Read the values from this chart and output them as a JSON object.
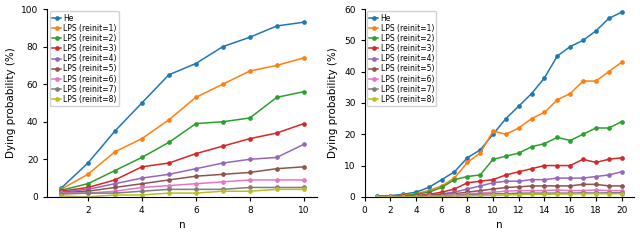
{
  "left": {
    "n": [
      1,
      2,
      3,
      4,
      5,
      6,
      7,
      8,
      9,
      10
    ],
    "He": [
      4.5,
      18,
      35,
      50,
      65,
      71,
      80,
      85,
      91,
      93
    ],
    "LPS1": [
      4.0,
      12,
      24,
      31,
      41,
      53,
      60,
      67,
      70,
      74
    ],
    "LPS2": [
      3.5,
      7,
      14,
      21,
      29,
      39,
      40,
      42,
      53,
      56
    ],
    "LPS3": [
      3.0,
      5,
      9,
      16,
      18,
      23,
      27,
      31,
      34,
      39
    ],
    "LPS4": [
      2.5,
      4,
      7,
      10,
      12,
      15,
      18,
      20,
      21,
      28
    ],
    "LPS5": [
      2.2,
      3,
      5,
      7,
      9,
      11,
      12,
      13,
      15,
      16
    ],
    "LPS6": [
      2.0,
      2,
      3,
      5,
      6,
      7,
      8,
      9,
      9,
      9
    ],
    "LPS7": [
      1.5,
      2,
      2,
      3,
      4,
      4,
      4,
      5,
      5,
      5
    ],
    "LPS8": [
      0.5,
      0,
      1,
      1,
      2,
      2,
      3,
      3,
      4,
      4
    ],
    "ylim": [
      0,
      100
    ],
    "yticks": [
      0,
      20,
      40,
      60,
      80,
      100
    ],
    "xlim": [
      0.5,
      10.5
    ],
    "xticks": [
      2,
      4,
      6,
      8,
      10
    ],
    "ylabel": "Dying probability (%)",
    "xlabel": "n"
  },
  "right": {
    "n": [
      1,
      2,
      3,
      4,
      5,
      6,
      7,
      8,
      9,
      10,
      11,
      12,
      13,
      14,
      15,
      16,
      17,
      18,
      19,
      20
    ],
    "He": [
      0.2,
      0.4,
      0.8,
      1.5,
      3.0,
      5.5,
      8.0,
      12.5,
      15.0,
      20.0,
      25.0,
      29.0,
      33.0,
      38.0,
      45.0,
      48.0,
      50.0,
      53.0,
      57.0,
      59.0
    ],
    "LPS1": [
      0.1,
      0.2,
      0.5,
      1.0,
      2.0,
      3.5,
      6.0,
      11.0,
      14.0,
      21.0,
      20.0,
      22.0,
      25.0,
      27.0,
      31.0,
      33.0,
      37.0,
      37.0,
      40.0,
      43.0
    ],
    "LPS2": [
      0.1,
      0.1,
      0.3,
      0.8,
      1.5,
      3.0,
      5.5,
      6.5,
      7.0,
      12.0,
      13.0,
      14.0,
      16.0,
      17.0,
      19.0,
      18.0,
      20.0,
      22.0,
      22.0,
      24.0
    ],
    "LPS3": [
      0.1,
      0.1,
      0.2,
      0.4,
      0.8,
      1.5,
      2.5,
      4.5,
      5.0,
      5.5,
      7.0,
      8.0,
      9.0,
      10.0,
      10.0,
      10.0,
      12.0,
      11.0,
      12.0,
      12.5
    ],
    "LPS4": [
      0.0,
      0.0,
      0.1,
      0.3,
      0.6,
      1.0,
      1.5,
      2.5,
      3.5,
      4.5,
      5.0,
      5.0,
      5.5,
      5.5,
      6.0,
      6.0,
      6.0,
      6.5,
      7.0,
      8.0
    ],
    "LPS5": [
      0.0,
      0.0,
      0.1,
      0.2,
      0.4,
      0.8,
      1.0,
      1.5,
      2.0,
      2.5,
      3.0,
      3.2,
      3.5,
      3.5,
      3.5,
      3.5,
      4.0,
      4.0,
      3.5,
      3.5
    ],
    "LPS6": [
      0.0,
      0.0,
      0.0,
      0.1,
      0.2,
      0.4,
      0.6,
      1.0,
      1.2,
      1.5,
      1.8,
      2.0,
      2.0,
      2.0,
      2.2,
      2.0,
      2.0,
      2.2,
      2.0,
      2.0
    ],
    "LPS7": [
      0.0,
      0.0,
      0.0,
      0.0,
      0.1,
      0.2,
      0.4,
      0.6,
      0.8,
      1.0,
      1.0,
      1.2,
      1.2,
      1.2,
      1.2,
      1.2,
      1.3,
      1.2,
      1.3,
      1.3
    ],
    "LPS8": [
      0.0,
      0.0,
      0.0,
      0.0,
      0.0,
      0.1,
      0.2,
      0.3,
      0.4,
      0.5,
      0.6,
      0.7,
      0.8,
      0.8,
      0.9,
      0.9,
      1.0,
      1.0,
      1.0,
      1.0
    ],
    "ylim": [
      0,
      60
    ],
    "yticks": [
      0,
      10,
      20,
      30,
      40,
      50,
      60
    ],
    "xlim": [
      0,
      21
    ],
    "xticks": [
      0,
      2,
      4,
      6,
      8,
      10,
      12,
      14,
      16,
      18,
      20
    ],
    "ylabel": "Dying probability (%)",
    "xlabel": "n"
  },
  "colors": {
    "He": "#1f77b4",
    "LPS1": "#ff7f0e",
    "LPS2": "#2ca02c",
    "LPS3": "#d62728",
    "LPS4": "#9467bd",
    "LPS5": "#8c564b",
    "LPS6": "#e377c2",
    "LPS7": "#7f7f7f",
    "LPS8": "#bcbd22"
  },
  "labels": {
    "He": "He",
    "LPS1": "LPS (reinit=1)",
    "LPS2": "LPS (reinit=2)",
    "LPS3": "LPS (reinit=3)",
    "LPS4": "LPS (reinit=4)",
    "LPS5": "LPS (reinit=5)",
    "LPS6": "LPS (reinit=6)",
    "LPS7": "LPS (reinit=7)",
    "LPS8": "LPS (reinit=8)"
  },
  "marker": "o",
  "markersize": 2.8,
  "linewidth": 1.1,
  "legend_fontsize": 5.5,
  "axis_label_fontsize": 7.5,
  "tick_fontsize": 6.5
}
